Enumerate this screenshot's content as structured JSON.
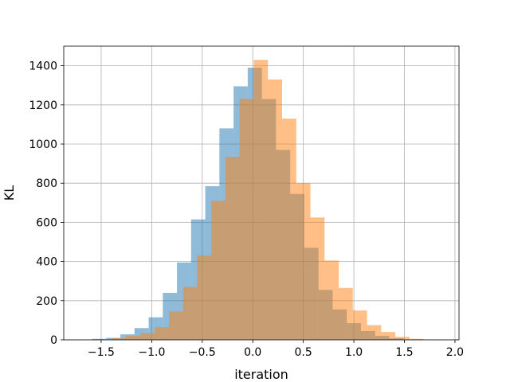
{
  "chart_data": {
    "type": "bar",
    "title": "",
    "xlabel": "iteration",
    "ylabel": "KL",
    "xlim": [
      -1.87,
      2.04
    ],
    "ylim": [
      0,
      1500
    ],
    "x_ticks": [
      -1.5,
      -1.0,
      -0.5,
      0.0,
      0.5,
      1.0,
      1.5,
      2.0
    ],
    "x_tick_labels": [
      "−1.5",
      "−1.0",
      "−0.5",
      "0.0",
      "0.5",
      "1.0",
      "1.5",
      "2.0"
    ],
    "y_ticks": [
      0,
      200,
      400,
      600,
      800,
      1000,
      1200,
      1400
    ],
    "y_tick_labels": [
      "0",
      "200",
      "400",
      "600",
      "800",
      "1000",
      "1200",
      "1400"
    ],
    "grid": true,
    "legend": "none",
    "series": [
      {
        "color": "#1f77b4",
        "opacity": 0.5,
        "bin_edges": [
          -1.73,
          -1.59,
          -1.45,
          -1.31,
          -1.17,
          -1.03,
          -0.89,
          -0.75,
          -0.61,
          -0.47,
          -0.33,
          -0.19,
          -0.05,
          0.09,
          0.23,
          0.37,
          0.51,
          0.65,
          0.79,
          0.93,
          1.07,
          1.21,
          1.35,
          1.49,
          1.63
        ],
        "counts": [
          1,
          5,
          10,
          28,
          60,
          115,
          240,
          395,
          615,
          785,
          1080,
          1295,
          1390,
          1230,
          970,
          745,
          470,
          255,
          155,
          85,
          45,
          20,
          8,
          2
        ]
      },
      {
        "color": "#ff7f0e",
        "opacity": 0.5,
        "bin_edges": [
          -1.39,
          -1.26,
          -1.11,
          -0.97,
          -0.83,
          -0.69,
          -0.55,
          -0.41,
          -0.27,
          -0.13,
          0.01,
          0.15,
          0.29,
          0.43,
          0.57,
          0.71,
          0.85,
          0.99,
          1.13,
          1.27,
          1.41,
          1.55,
          1.69
        ],
        "counts": [
          8,
          20,
          35,
          65,
          145,
          270,
          430,
          710,
          935,
          1230,
          1430,
          1330,
          1130,
          800,
          625,
          405,
          265,
          150,
          75,
          40,
          15,
          5
        ]
      }
    ]
  }
}
